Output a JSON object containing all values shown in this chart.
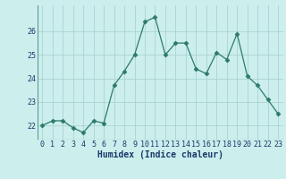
{
  "x": [
    0,
    1,
    2,
    3,
    4,
    5,
    6,
    7,
    8,
    9,
    10,
    11,
    12,
    13,
    14,
    15,
    16,
    17,
    18,
    19,
    20,
    21,
    22,
    23
  ],
  "y": [
    22.0,
    22.2,
    22.2,
    21.9,
    21.7,
    22.2,
    22.1,
    23.7,
    24.3,
    25.0,
    26.4,
    26.6,
    25.0,
    25.5,
    25.5,
    24.4,
    24.2,
    25.1,
    24.8,
    25.9,
    24.1,
    23.7,
    23.1,
    22.5
  ],
  "line_color": "#2d7a6a",
  "marker": "D",
  "marker_size": 2.5,
  "bg_color": "#cceeed",
  "grid_color": "#aad4d0",
  "xlabel": "Humidex (Indice chaleur)",
  "xlim": [
    -0.5,
    23.5
  ],
  "ylim": [
    21.4,
    27.1
  ],
  "yticks": [
    22,
    23,
    24,
    25,
    26
  ],
  "xticks": [
    0,
    1,
    2,
    3,
    4,
    5,
    6,
    7,
    8,
    9,
    10,
    11,
    12,
    13,
    14,
    15,
    16,
    17,
    18,
    19,
    20,
    21,
    22,
    23
  ],
  "xlabel_fontsize": 7,
  "tick_fontsize": 6,
  "label_color": "#1a3a6a"
}
